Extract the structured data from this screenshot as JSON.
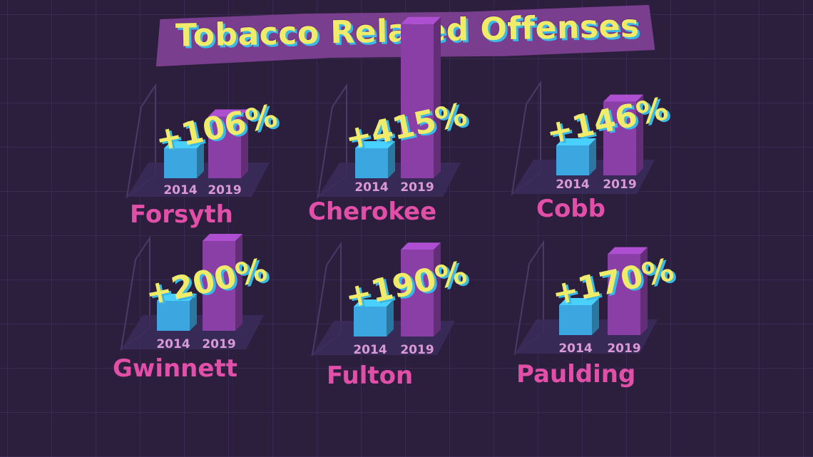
{
  "title": "Tobacco Related Offenses",
  "colors": {
    "background": "#2b1f3d",
    "bar_2014": "#3ba6e0",
    "bar_2019": "#8a3fa6",
    "county_label": "#e24fa8",
    "percent_label": "#f0ec6a"
  },
  "chart_data": [
    {
      "type": "bar",
      "county": "Forsyth",
      "change": "+106%",
      "categories": [
        "2014",
        "2019"
      ],
      "values": [
        1.0,
        2.06
      ]
    },
    {
      "type": "bar",
      "county": "Cherokee",
      "change": "+415%",
      "categories": [
        "2014",
        "2019"
      ],
      "values": [
        1.0,
        5.15
      ]
    },
    {
      "type": "bar",
      "county": "Cobb",
      "change": "+146%",
      "categories": [
        "2014",
        "2019"
      ],
      "values": [
        1.0,
        2.46
      ]
    },
    {
      "type": "bar",
      "county": "Gwinnett",
      "change": "+200%",
      "categories": [
        "2014",
        "2019"
      ],
      "values": [
        1.0,
        3.0
      ]
    },
    {
      "type": "bar",
      "county": "Fulton",
      "change": "+190%",
      "categories": [
        "2014",
        "2019"
      ],
      "values": [
        1.0,
        2.9
      ]
    },
    {
      "type": "bar",
      "county": "Paulding",
      "change": "+170%",
      "categories": [
        "2014",
        "2019"
      ],
      "values": [
        1.0,
        2.7
      ]
    }
  ]
}
